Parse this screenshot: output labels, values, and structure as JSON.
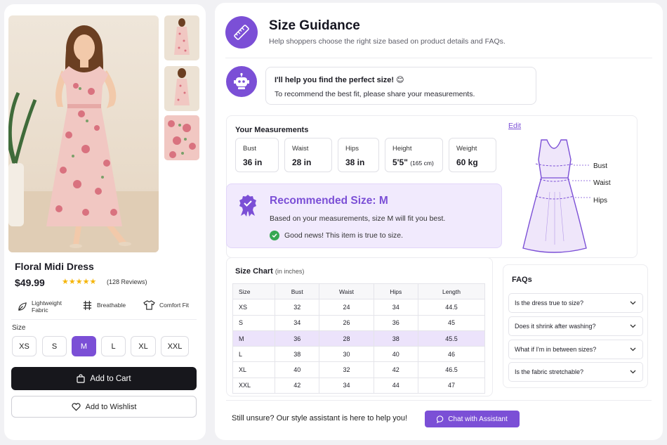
{
  "product": {
    "title": "Floral Midi Dress",
    "price": "$49.99",
    "stars": "★★★★★",
    "reviews": "(128 Reviews)",
    "features": [
      "Lightweight Fabric",
      "Breathable",
      "Comfort Fit"
    ],
    "size_label": "Size",
    "sizes": [
      "XS",
      "S",
      "M",
      "L",
      "XL",
      "XXL"
    ],
    "selected_size": "M",
    "add_to_cart": "Add to Cart",
    "add_to_wishlist": "Add to Wishlist"
  },
  "guidance": {
    "title": "Size Guidance",
    "subtitle": "Help shoppers choose the right size based on product details and FAQs.",
    "bot_line1": "I'll help you find the perfect size! 😊",
    "bot_line2": "To recommend the best fit, please share your measurements."
  },
  "measurements": {
    "title": "Your Measurements",
    "edit": "Edit",
    "items": [
      {
        "label": "Bust",
        "value": "36 in"
      },
      {
        "label": "Waist",
        "value": "28 in"
      },
      {
        "label": "Hips",
        "value": "38 in"
      },
      {
        "label": "Height",
        "value": "5'5\"",
        "extra": "(165 cm)"
      },
      {
        "label": "Weight",
        "value": "60 kg"
      }
    ],
    "diagram_labels": [
      "Bust",
      "Waist",
      "Hips"
    ]
  },
  "recommendation": {
    "title": "Recommended Size: M",
    "line1": "Based on your measurements, size M will fit you best.",
    "line2": "Good news! This item is true to size."
  },
  "size_chart": {
    "title": "Size Chart",
    "units": "(in inches)",
    "columns": [
      "Size",
      "Bust",
      "Waist",
      "Hips",
      "Length"
    ],
    "rows": [
      [
        "XS",
        "32",
        "24",
        "34",
        "44.5"
      ],
      [
        "S",
        "34",
        "26",
        "36",
        "45"
      ],
      [
        "M",
        "36",
        "28",
        "38",
        "45.5"
      ],
      [
        "L",
        "38",
        "30",
        "40",
        "46"
      ],
      [
        "XL",
        "40",
        "32",
        "42",
        "46.5"
      ],
      [
        "XXL",
        "42",
        "34",
        "44",
        "47"
      ]
    ],
    "highlight_row": "M"
  },
  "faqs": {
    "title": "FAQs",
    "items": [
      "Is the dress true to size?",
      "Does it shrink after washing?",
      "What if I'm in between sizes?",
      "Is the fabric stretchable?"
    ]
  },
  "footer": {
    "text": "Still unsure? Our style assistant is here to help you!",
    "chat_button": "Chat with Assistant"
  },
  "colors": {
    "accent": "#7b4fd6",
    "dark_button": "#17171c",
    "highlight_row": "#ece3fb",
    "success": "#35a852",
    "star": "#f5b50a"
  }
}
